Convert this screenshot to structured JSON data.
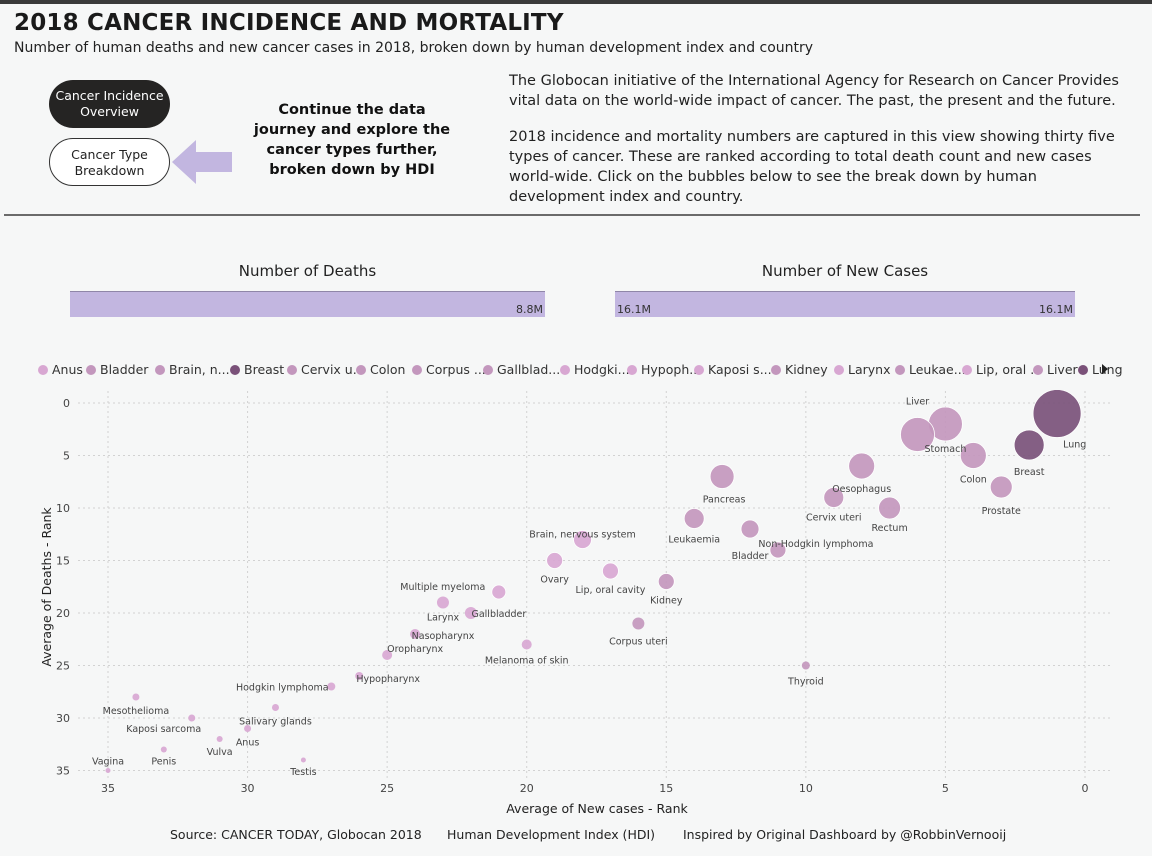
{
  "header": {
    "title": "2018 CANCER INCIDENCE AND MORTALITY",
    "subtitle": "Number of human deaths and new cancer cases in 2018, broken down by human development index and country"
  },
  "nav": {
    "overview_line1": "Cancer Incidence",
    "overview_line2": "Overview",
    "breakdown_line1": "Cancer Type",
    "breakdown_line2": "Breakdown",
    "journey_text": "Continue the data journey and explore the cancer types further, broken down by HDI"
  },
  "intro": {
    "para1": "The Globocan initiative of the International Agency for Research on Cancer Provides vital data on the world-wide impact of cancer. The past, the present and the future.",
    "para2": "2018 incidence and mortality numbers are captured in this view showing thirty five types of cancer. These are ranked according to total death count and new cases world-wide. Click on the bubbles below to see the break down by human development index and country."
  },
  "kpis": {
    "deaths": {
      "title": "Number of Deaths",
      "value_label": "8.8M",
      "fraction": 1.0
    },
    "new_cases": {
      "title": "Number of New Cases",
      "min_label": "16.1M",
      "value_label": "16.1M",
      "fraction": 1.0
    }
  },
  "colors": {
    "light": "#d8a7d2",
    "medium": "#c397bd",
    "dark": "#7a5179",
    "kpi_fill": "#c2b6e0",
    "arrow": "#c2b6e0"
  },
  "legend": [
    {
      "label": "Anus",
      "tone": "light"
    },
    {
      "label": "Bladder",
      "tone": "medium"
    },
    {
      "label": "Brain, n...",
      "tone": "medium"
    },
    {
      "label": "Breast",
      "tone": "dark"
    },
    {
      "label": "Cervix u...",
      "tone": "medium"
    },
    {
      "label": "Colon",
      "tone": "medium"
    },
    {
      "label": "Corpus ...",
      "tone": "medium"
    },
    {
      "label": "Gallblad...",
      "tone": "medium"
    },
    {
      "label": "Hodgki...",
      "tone": "light"
    },
    {
      "label": "Hypoph...",
      "tone": "light"
    },
    {
      "label": "Kaposi s...",
      "tone": "light"
    },
    {
      "label": "Kidney",
      "tone": "medium"
    },
    {
      "label": "Larynx",
      "tone": "light"
    },
    {
      "label": "Leukae...",
      "tone": "medium"
    },
    {
      "label": "Lip, oral ...",
      "tone": "light"
    },
    {
      "label": "Liver",
      "tone": "medium"
    },
    {
      "label": "Lung",
      "tone": "dark"
    }
  ],
  "chart_data": {
    "type": "scatter",
    "xlabel": "Average of New cases - Rank",
    "ylabel": "Average of Deaths - Rank",
    "xlim": [
      36,
      0
    ],
    "ylim": [
      0,
      36
    ],
    "x_ticks": [
      35,
      30,
      25,
      20,
      15,
      10,
      5,
      0
    ],
    "y_ticks": [
      0,
      5,
      10,
      15,
      20,
      25,
      30,
      35
    ],
    "grid": true,
    "legend_position": "top",
    "points": [
      {
        "name": "Lung",
        "x": 1,
        "y": 1,
        "r": 24,
        "tone": "dark",
        "labelled": true
      },
      {
        "name": "Breast",
        "x": 2,
        "y": 4,
        "r": 15,
        "tone": "dark",
        "labelled": true
      },
      {
        "name": "Prostate",
        "x": 3,
        "y": 8,
        "r": 11,
        "tone": "medium",
        "labelled": true
      },
      {
        "name": "Colon",
        "x": 4,
        "y": 5,
        "r": 13,
        "tone": "medium",
        "labelled": true
      },
      {
        "name": "Stomach",
        "x": 5,
        "y": 2,
        "r": 17,
        "tone": "medium",
        "labelled": true
      },
      {
        "name": "Liver",
        "x": 6,
        "y": 3,
        "r": 17,
        "tone": "medium",
        "labelled": true
      },
      {
        "name": "Oesophagus",
        "x": 8,
        "y": 6,
        "r": 13,
        "tone": "medium",
        "labelled": true
      },
      {
        "name": "Rectum",
        "x": 7,
        "y": 10,
        "r": 11,
        "tone": "medium",
        "labelled": true
      },
      {
        "name": "Cervix uteri",
        "x": 9,
        "y": 9,
        "r": 10,
        "tone": "medium",
        "labelled": true
      },
      {
        "name": "Non-Hodgkin lymphoma",
        "x": 11,
        "y": 14,
        "r": 8,
        "tone": "medium",
        "labelled": true
      },
      {
        "name": "Bladder",
        "x": 12,
        "y": 12,
        "r": 9,
        "tone": "medium",
        "labelled": true
      },
      {
        "name": "Pancreas",
        "x": 13,
        "y": 7,
        "r": 12,
        "tone": "medium",
        "labelled": true
      },
      {
        "name": "Leukaemia",
        "x": 14,
        "y": 11,
        "r": 10,
        "tone": "medium",
        "labelled": true
      },
      {
        "name": "Kidney",
        "x": 15,
        "y": 17,
        "r": 8,
        "tone": "medium",
        "labelled": true
      },
      {
        "name": "Corpus uteri",
        "x": 16,
        "y": 21,
        "r": 6,
        "tone": "medium",
        "labelled": true
      },
      {
        "name": "Lip, oral cavity",
        "x": 17,
        "y": 16,
        "r": 8,
        "tone": "light",
        "labelled": true
      },
      {
        "name": "Thyroid",
        "x": 10,
        "y": 25,
        "r": 4,
        "tone": "medium",
        "labelled": true
      },
      {
        "name": "Brain, nervous system",
        "x": 18,
        "y": 13,
        "r": 9,
        "tone": "light",
        "labelled": true
      },
      {
        "name": "Ovary",
        "x": 19,
        "y": 15,
        "r": 8,
        "tone": "light",
        "labelled": true
      },
      {
        "name": "Melanoma of skin",
        "x": 20,
        "y": 23,
        "r": 5,
        "tone": "light",
        "labelled": true
      },
      {
        "name": "Gallbladder",
        "x": 22,
        "y": 20,
        "r": 6,
        "tone": "light",
        "labelled": true
      },
      {
        "name": "Multiple myeloma",
        "x": 21,
        "y": 18,
        "r": 7,
        "tone": "light",
        "labelled": true
      },
      {
        "name": "Larynx",
        "x": 23,
        "y": 19,
        "r": 6,
        "tone": "light",
        "labelled": true
      },
      {
        "name": "Nasopharynx",
        "x": 24,
        "y": 22,
        "r": 5,
        "tone": "light",
        "labelled": true
      },
      {
        "name": "Oropharynx",
        "x": 25,
        "y": 24,
        "r": 5,
        "tone": "light",
        "labelled": true
      },
      {
        "name": "Hypopharynx",
        "x": 26,
        "y": 26,
        "r": 4,
        "tone": "light",
        "labelled": true
      },
      {
        "name": "Hodgkin lymphoma",
        "x": 27,
        "y": 27,
        "r": 4,
        "tone": "light",
        "labelled": true
      },
      {
        "name": "Salivary glands",
        "x": 29,
        "y": 29,
        "r": 3.5,
        "tone": "light",
        "labelled": true
      },
      {
        "name": "Anus",
        "x": 30,
        "y": 31,
        "r": 3.5,
        "tone": "light",
        "labelled": true
      },
      {
        "name": "Vulva",
        "x": 31,
        "y": 32,
        "r": 3,
        "tone": "light",
        "labelled": true
      },
      {
        "name": "Kaposi sarcoma",
        "x": 32,
        "y": 30,
        "r": 3.5,
        "tone": "light",
        "labelled": true
      },
      {
        "name": "Penis",
        "x": 33,
        "y": 33,
        "r": 3,
        "tone": "light",
        "labelled": true
      },
      {
        "name": "Mesothelioma",
        "x": 34,
        "y": 28,
        "r": 3.5,
        "tone": "light",
        "labelled": true
      },
      {
        "name": "Vagina",
        "x": 35,
        "y": 35,
        "r": 2.5,
        "tone": "light",
        "labelled": true
      },
      {
        "name": "Testis",
        "x": 28,
        "y": 34,
        "r": 2.5,
        "tone": "light",
        "labelled": true
      }
    ]
  },
  "footer": {
    "source": "Source: CANCER TODAY, Globocan 2018",
    "hdi": "Human Development Index (HDI)",
    "credit": "Inspired by Original Dashboard by @RobbinVernooij"
  }
}
